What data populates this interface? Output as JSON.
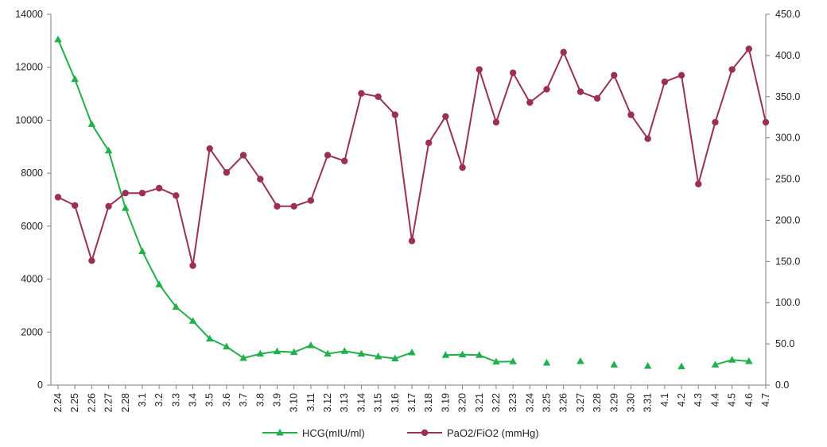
{
  "chart_data": {
    "type": "line",
    "title": "",
    "xlabel": "",
    "ylabel": "",
    "y2label": "",
    "ylim": [
      0,
      14000
    ],
    "y2lim": [
      0,
      450
    ],
    "grid": false,
    "legend_position": "bottom",
    "categories": [
      "2.24",
      "2.25",
      "2.26",
      "2.27",
      "2.28",
      "3.1",
      "3.2",
      "3.3",
      "3.4",
      "3.5",
      "3.6",
      "3.7",
      "3.8",
      "3.9",
      "3.10",
      "3.11",
      "3.12",
      "3.13",
      "3.14",
      "3.15",
      "3.16",
      "3.17",
      "3.18",
      "3.19",
      "3.20",
      "3.21",
      "3.22",
      "3.23",
      "3.24",
      "3.25",
      "3.26",
      "3.27",
      "3.28",
      "3.29",
      "3.30",
      "3.31",
      "4.1",
      "4.2",
      "4.3",
      "4.4",
      "4.5",
      "4.6",
      "4.7"
    ],
    "y_ticks": [
      "0",
      "2000",
      "4000",
      "6000",
      "8000",
      "10000",
      "12000",
      "14000"
    ],
    "y2_ticks": [
      "0.0",
      "50.0",
      "100.0",
      "150.0",
      "200.0",
      "250.0",
      "300.0",
      "350.0",
      "400.0",
      "450.0"
    ],
    "series": [
      {
        "name": "HCG(mIU/ml)",
        "axis": "left",
        "color": "#21b04b",
        "marker": "triangle",
        "values": [
          13050,
          11550,
          9850,
          8850,
          6680,
          5050,
          3800,
          2950,
          2420,
          1750,
          1450,
          1020,
          1180,
          1270,
          1240,
          1500,
          1180,
          1280,
          1180,
          1080,
          1000,
          1230,
          null,
          1130,
          1150,
          1130,
          880,
          890,
          null,
          840,
          null,
          900,
          null,
          770,
          null,
          720,
          null,
          700,
          null,
          770,
          950,
          900,
          null
        ]
      },
      {
        "name": "PaO2/FiO2 (mmHg)",
        "axis": "right",
        "color": "#9b3057",
        "marker": "circle",
        "values": [
          228,
          218,
          151,
          217,
          233,
          233,
          239,
          230,
          145,
          287,
          258,
          279,
          250,
          217,
          217,
          224,
          279,
          272,
          354,
          350,
          328,
          175,
          294,
          326,
          264,
          383,
          319,
          379,
          343,
          359,
          404,
          356,
          348,
          376,
          328,
          299,
          368,
          376,
          244,
          319,
          383,
          408,
          319
        ]
      }
    ]
  }
}
